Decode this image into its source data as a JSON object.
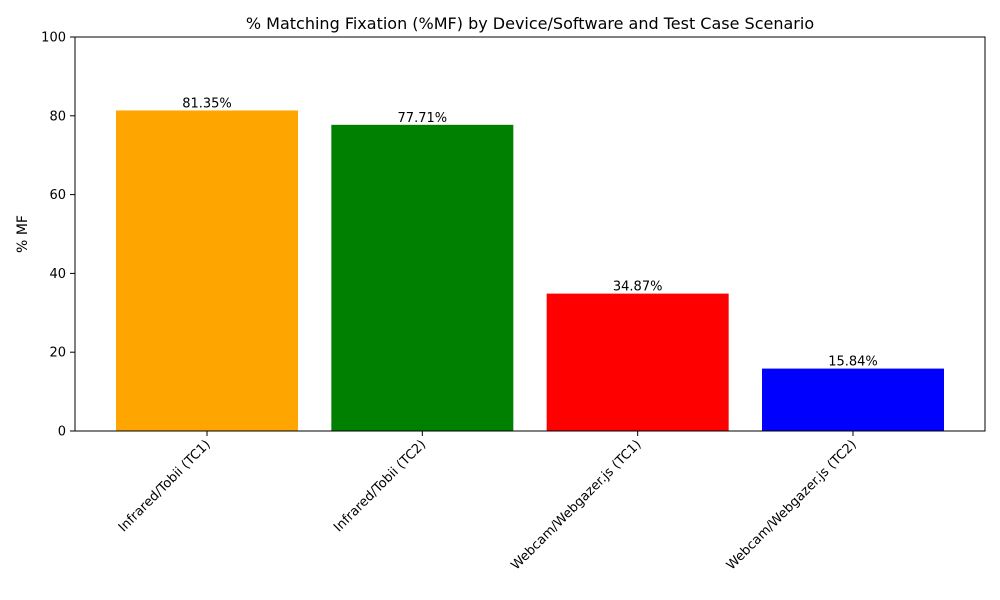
{
  "chart_data": {
    "type": "bar",
    "title": "% Matching Fixation (%MF) by Device/Software and Test Case Scenario",
    "xlabel": "",
    "ylabel": "% MF",
    "ylim": [
      0,
      100
    ],
    "yticks": [
      0,
      20,
      40,
      60,
      80,
      100
    ],
    "grid": false,
    "legend": "none",
    "categories": [
      "Infrared/Tobii (TC1)",
      "Infrared/Tobii (TC2)",
      "Webcam/Webgazer.js (TC1)",
      "Webcam/Webgazer.js (TC2)"
    ],
    "values": [
      81.35,
      77.71,
      34.87,
      15.84
    ],
    "value_labels": [
      "81.35%",
      "77.71%",
      "34.87%",
      "15.84%"
    ],
    "colors": [
      "#ffa500",
      "#008000",
      "#ff0000",
      "#0000ff"
    ]
  }
}
